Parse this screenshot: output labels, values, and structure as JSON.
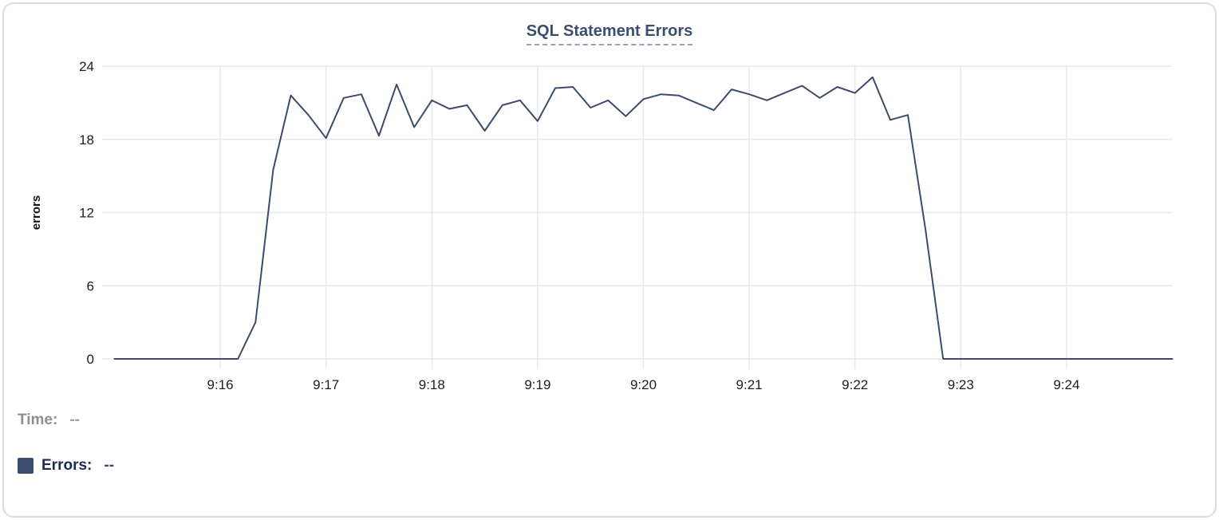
{
  "chart": {
    "title": "SQL Statement Errors",
    "y_axis_label": "errors",
    "x_tick_labels": [
      "9:16",
      "9:17",
      "9:18",
      "9:19",
      "9:20",
      "9:21",
      "9:22",
      "9:23",
      "9:24"
    ],
    "y_tick_labels": [
      "0",
      "6",
      "12",
      "18",
      "24"
    ]
  },
  "legend": {
    "time_label": "Time:",
    "time_value": "--",
    "errors_label": "Errors:",
    "errors_value": "--"
  },
  "colors": {
    "line": "#3d4b6b",
    "swatch": "#3e4c6b",
    "gridline": "#e8e9ea",
    "tick_text": "#1b1e22",
    "title": "#3b4d70",
    "title_underline": "#94a1bf",
    "card_border": "#d9dbde"
  },
  "chart_data": {
    "type": "line",
    "title": "SQL Statement Errors",
    "xlabel": "",
    "ylabel": "errors",
    "ylim": [
      0,
      24
    ],
    "y_ticks": [
      0,
      6,
      12,
      18,
      24
    ],
    "x_ticks": [
      "9:16:00",
      "9:17:00",
      "9:18:00",
      "9:19:00",
      "9:20:00",
      "9:21:00",
      "9:22:00",
      "9:23:00",
      "9:24:00"
    ],
    "x_range": [
      "9:15:00",
      "9:25:00"
    ],
    "interval_seconds": 10,
    "grid": true,
    "legend_position": "bottom-left",
    "series": [
      {
        "name": "Errors",
        "color": "#3d4b6b",
        "x": [
          "9:15:00",
          "9:15:10",
          "9:15:20",
          "9:15:30",
          "9:15:40",
          "9:15:50",
          "9:16:00",
          "9:16:10",
          "9:16:20",
          "9:16:30",
          "9:16:40",
          "9:16:50",
          "9:17:00",
          "9:17:10",
          "9:17:20",
          "9:17:30",
          "9:17:40",
          "9:17:50",
          "9:18:00",
          "9:18:10",
          "9:18:20",
          "9:18:30",
          "9:18:40",
          "9:18:50",
          "9:19:00",
          "9:19:10",
          "9:19:20",
          "9:19:30",
          "9:19:40",
          "9:19:50",
          "9:20:00",
          "9:20:10",
          "9:20:20",
          "9:20:30",
          "9:20:40",
          "9:20:50",
          "9:21:00",
          "9:21:10",
          "9:21:20",
          "9:21:30",
          "9:21:40",
          "9:21:50",
          "9:22:00",
          "9:22:10",
          "9:22:20",
          "9:22:30",
          "9:22:40",
          "9:22:50",
          "9:23:00",
          "9:23:10",
          "9:23:20",
          "9:23:30",
          "9:23:40",
          "9:23:50",
          "9:24:00",
          "9:24:10",
          "9:24:20",
          "9:24:30",
          "9:24:40",
          "9:24:50",
          "9:25:00"
        ],
        "values": [
          0,
          0,
          0,
          0,
          0,
          0,
          0,
          0,
          3,
          15.5,
          21.6,
          20,
          18.1,
          21.4,
          21.7,
          18.3,
          22.5,
          19,
          21.2,
          20.5,
          20.8,
          18.7,
          20.8,
          21.2,
          19.5,
          22.2,
          22.3,
          20.6,
          21.2,
          19.9,
          21.3,
          21.7,
          21.6,
          21,
          20.4,
          22.1,
          21.7,
          21.2,
          21.8,
          22.4,
          21.4,
          22.3,
          21.8,
          23.1,
          19.6,
          20,
          10.6,
          0,
          0,
          0,
          0,
          0,
          0,
          0,
          0,
          0,
          0,
          0,
          0,
          0,
          0
        ]
      }
    ]
  }
}
